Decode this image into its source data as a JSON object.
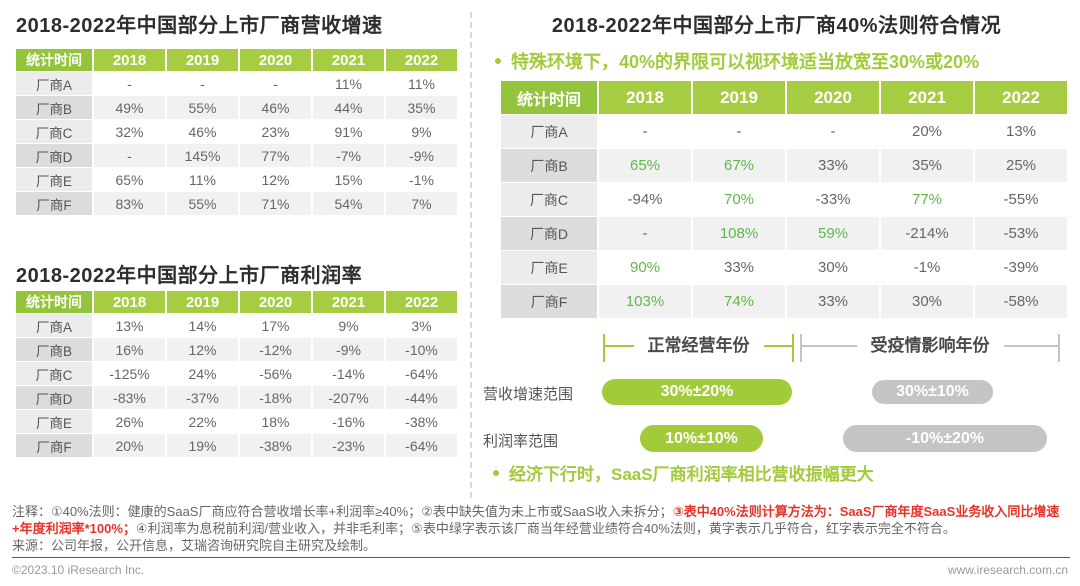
{
  "colors": {
    "accent_green": "#a2cb3a",
    "header_green": "#a6cd42",
    "header_label_green": "#94c43c",
    "meets_rule_green": "#5eb84a",
    "note_red": "#e8332a",
    "pill_gray": "#c4c4c4"
  },
  "left": {
    "revenue_table": {
      "title": "2018-2022年中国部分上市厂商营收增速",
      "header": [
        "统计时间",
        "2018",
        "2019",
        "2020",
        "2021",
        "2022"
      ],
      "rows": [
        {
          "label": "厂商A",
          "values": [
            "-",
            "-",
            "-",
            "11%",
            "11%"
          ]
        },
        {
          "label": "厂商B",
          "values": [
            "49%",
            "55%",
            "46%",
            "44%",
            "35%"
          ]
        },
        {
          "label": "厂商C",
          "values": [
            "32%",
            "46%",
            "23%",
            "91%",
            "9%"
          ]
        },
        {
          "label": "厂商D",
          "values": [
            "-",
            "145%",
            "77%",
            "-7%",
            "-9%"
          ]
        },
        {
          "label": "厂商E",
          "values": [
            "65%",
            "11%",
            "12%",
            "15%",
            "-1%"
          ]
        },
        {
          "label": "厂商F",
          "values": [
            "83%",
            "55%",
            "71%",
            "54%",
            "7%"
          ]
        }
      ]
    },
    "profit_table": {
      "title": "2018-2022年中国部分上市厂商利润率",
      "header": [
        "统计时间",
        "2018",
        "2019",
        "2020",
        "2021",
        "2022"
      ],
      "rows": [
        {
          "label": "厂商A",
          "values": [
            "13%",
            "14%",
            "17%",
            "9%",
            "3%"
          ]
        },
        {
          "label": "厂商B",
          "values": [
            "16%",
            "12%",
            "-12%",
            "-9%",
            "-10%"
          ]
        },
        {
          "label": "厂商C",
          "values": [
            "-125%",
            "24%",
            "-56%",
            "-14%",
            "-64%"
          ]
        },
        {
          "label": "厂商D",
          "values": [
            "-83%",
            "-37%",
            "-18%",
            "-207%",
            "-44%"
          ]
        },
        {
          "label": "厂商E",
          "values": [
            "26%",
            "22%",
            "18%",
            "-16%",
            "-38%"
          ]
        },
        {
          "label": "厂商F",
          "values": [
            "20%",
            "19%",
            "-38%",
            "-23%",
            "-64%"
          ]
        }
      ]
    }
  },
  "right": {
    "title": "2018-2022年中国部分上市厂商40%法则符合情况",
    "note_bullet": "特殊环境下，40%的界限可以视环境适当放宽至30%或20%",
    "rule_table": {
      "header": [
        "统计时间",
        "2018",
        "2019",
        "2020",
        "2021",
        "2022"
      ],
      "rows": [
        {
          "label": "厂商A",
          "values": [
            "-",
            "-",
            "-",
            "20%",
            "13%"
          ],
          "meets_rule_indexes": []
        },
        {
          "label": "厂商B",
          "values": [
            "65%",
            "67%",
            "33%",
            "35%",
            "25%"
          ],
          "meets_rule_indexes": [
            0,
            1
          ]
        },
        {
          "label": "厂商C",
          "values": [
            "-94%",
            "70%",
            "-33%",
            "77%",
            "-55%"
          ],
          "meets_rule_indexes": [
            1,
            3
          ]
        },
        {
          "label": "厂商D",
          "values": [
            "-",
            "108%",
            "59%",
            "-214%",
            "-53%"
          ],
          "meets_rule_indexes": [
            1,
            2
          ]
        },
        {
          "label": "厂商E",
          "values": [
            "90%",
            "33%",
            "30%",
            "-1%",
            "-39%"
          ],
          "meets_rule_indexes": [
            0
          ]
        },
        {
          "label": "厂商F",
          "values": [
            "103%",
            "74%",
            "33%",
            "30%",
            "-58%"
          ],
          "meets_rule_indexes": [
            0,
            1
          ]
        }
      ]
    },
    "period_normal": "正常经营年份",
    "period_covid": "受疫情影响年份",
    "ranges": [
      {
        "label": "营收增速范围",
        "normal": "30%±20%",
        "covid": "30%±10%"
      },
      {
        "label": "利润率范围",
        "normal": "10%±10%",
        "covid": "-10%±20%"
      }
    ],
    "conclusion_bullet": "经济下行时，SaaS厂商利润率相比营收振幅更大"
  },
  "notes": {
    "part1": "注释：①40%法则：健康的SaaS厂商应符合营收增长率+利润率≥40%；②表中缺失值为未上市或SaaS收入未拆分；",
    "red_part": "③表中40%法则计算方法为：SaaS厂商年度SaaS业务收入同比增速+年度利润率*100%；",
    "part2": "④利润率为息税前利润/营业收入，并非毛利率；⑤表中绿字表示该厂商当年经营业绩符合40%法则，黄字表示几乎符合，红字表示完全不符合。",
    "source": "来源：公司年报，公开信息，艾瑞咨询研究院自主研究及绘制。"
  },
  "footer": {
    "copyright": "©2023.10 iResearch Inc.",
    "website": "www.iresearch.com.cn"
  }
}
